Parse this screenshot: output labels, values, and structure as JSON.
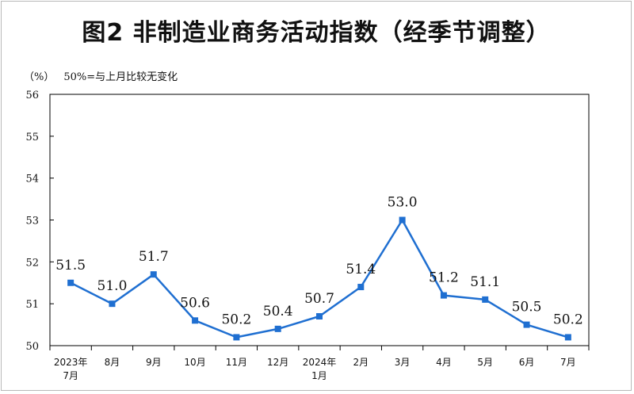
{
  "chart_data": {
    "type": "line",
    "title": "图2  非制造业商务活动指数（经季节调整）",
    "unit": "（%）",
    "note": "50%=与上月比较无变化",
    "categories": [
      [
        "2023年",
        "7月"
      ],
      [
        "8月"
      ],
      [
        "9月"
      ],
      [
        "10月"
      ],
      [
        "11月"
      ],
      [
        "12月"
      ],
      [
        "2024年",
        "1月"
      ],
      [
        "2月"
      ],
      [
        "3月"
      ],
      [
        "4月"
      ],
      [
        "5月"
      ],
      [
        "6月"
      ],
      [
        "7月"
      ]
    ],
    "values": [
      51.5,
      51.0,
      51.7,
      50.6,
      50.2,
      50.4,
      50.7,
      51.4,
      53.0,
      51.2,
      51.1,
      50.5,
      50.2
    ],
    "labels": [
      "51.5",
      "51.0",
      "51.7",
      "50.6",
      "50.2",
      "50.4",
      "50.7",
      "51.4",
      "53.0",
      "51.2",
      "51.1",
      "50.5",
      "50.2"
    ],
    "ylim": [
      50,
      56
    ],
    "yticks": [
      "50",
      "51",
      "52",
      "53",
      "54",
      "55",
      "56"
    ],
    "grid": false,
    "line_color": "#1f6fd1"
  }
}
